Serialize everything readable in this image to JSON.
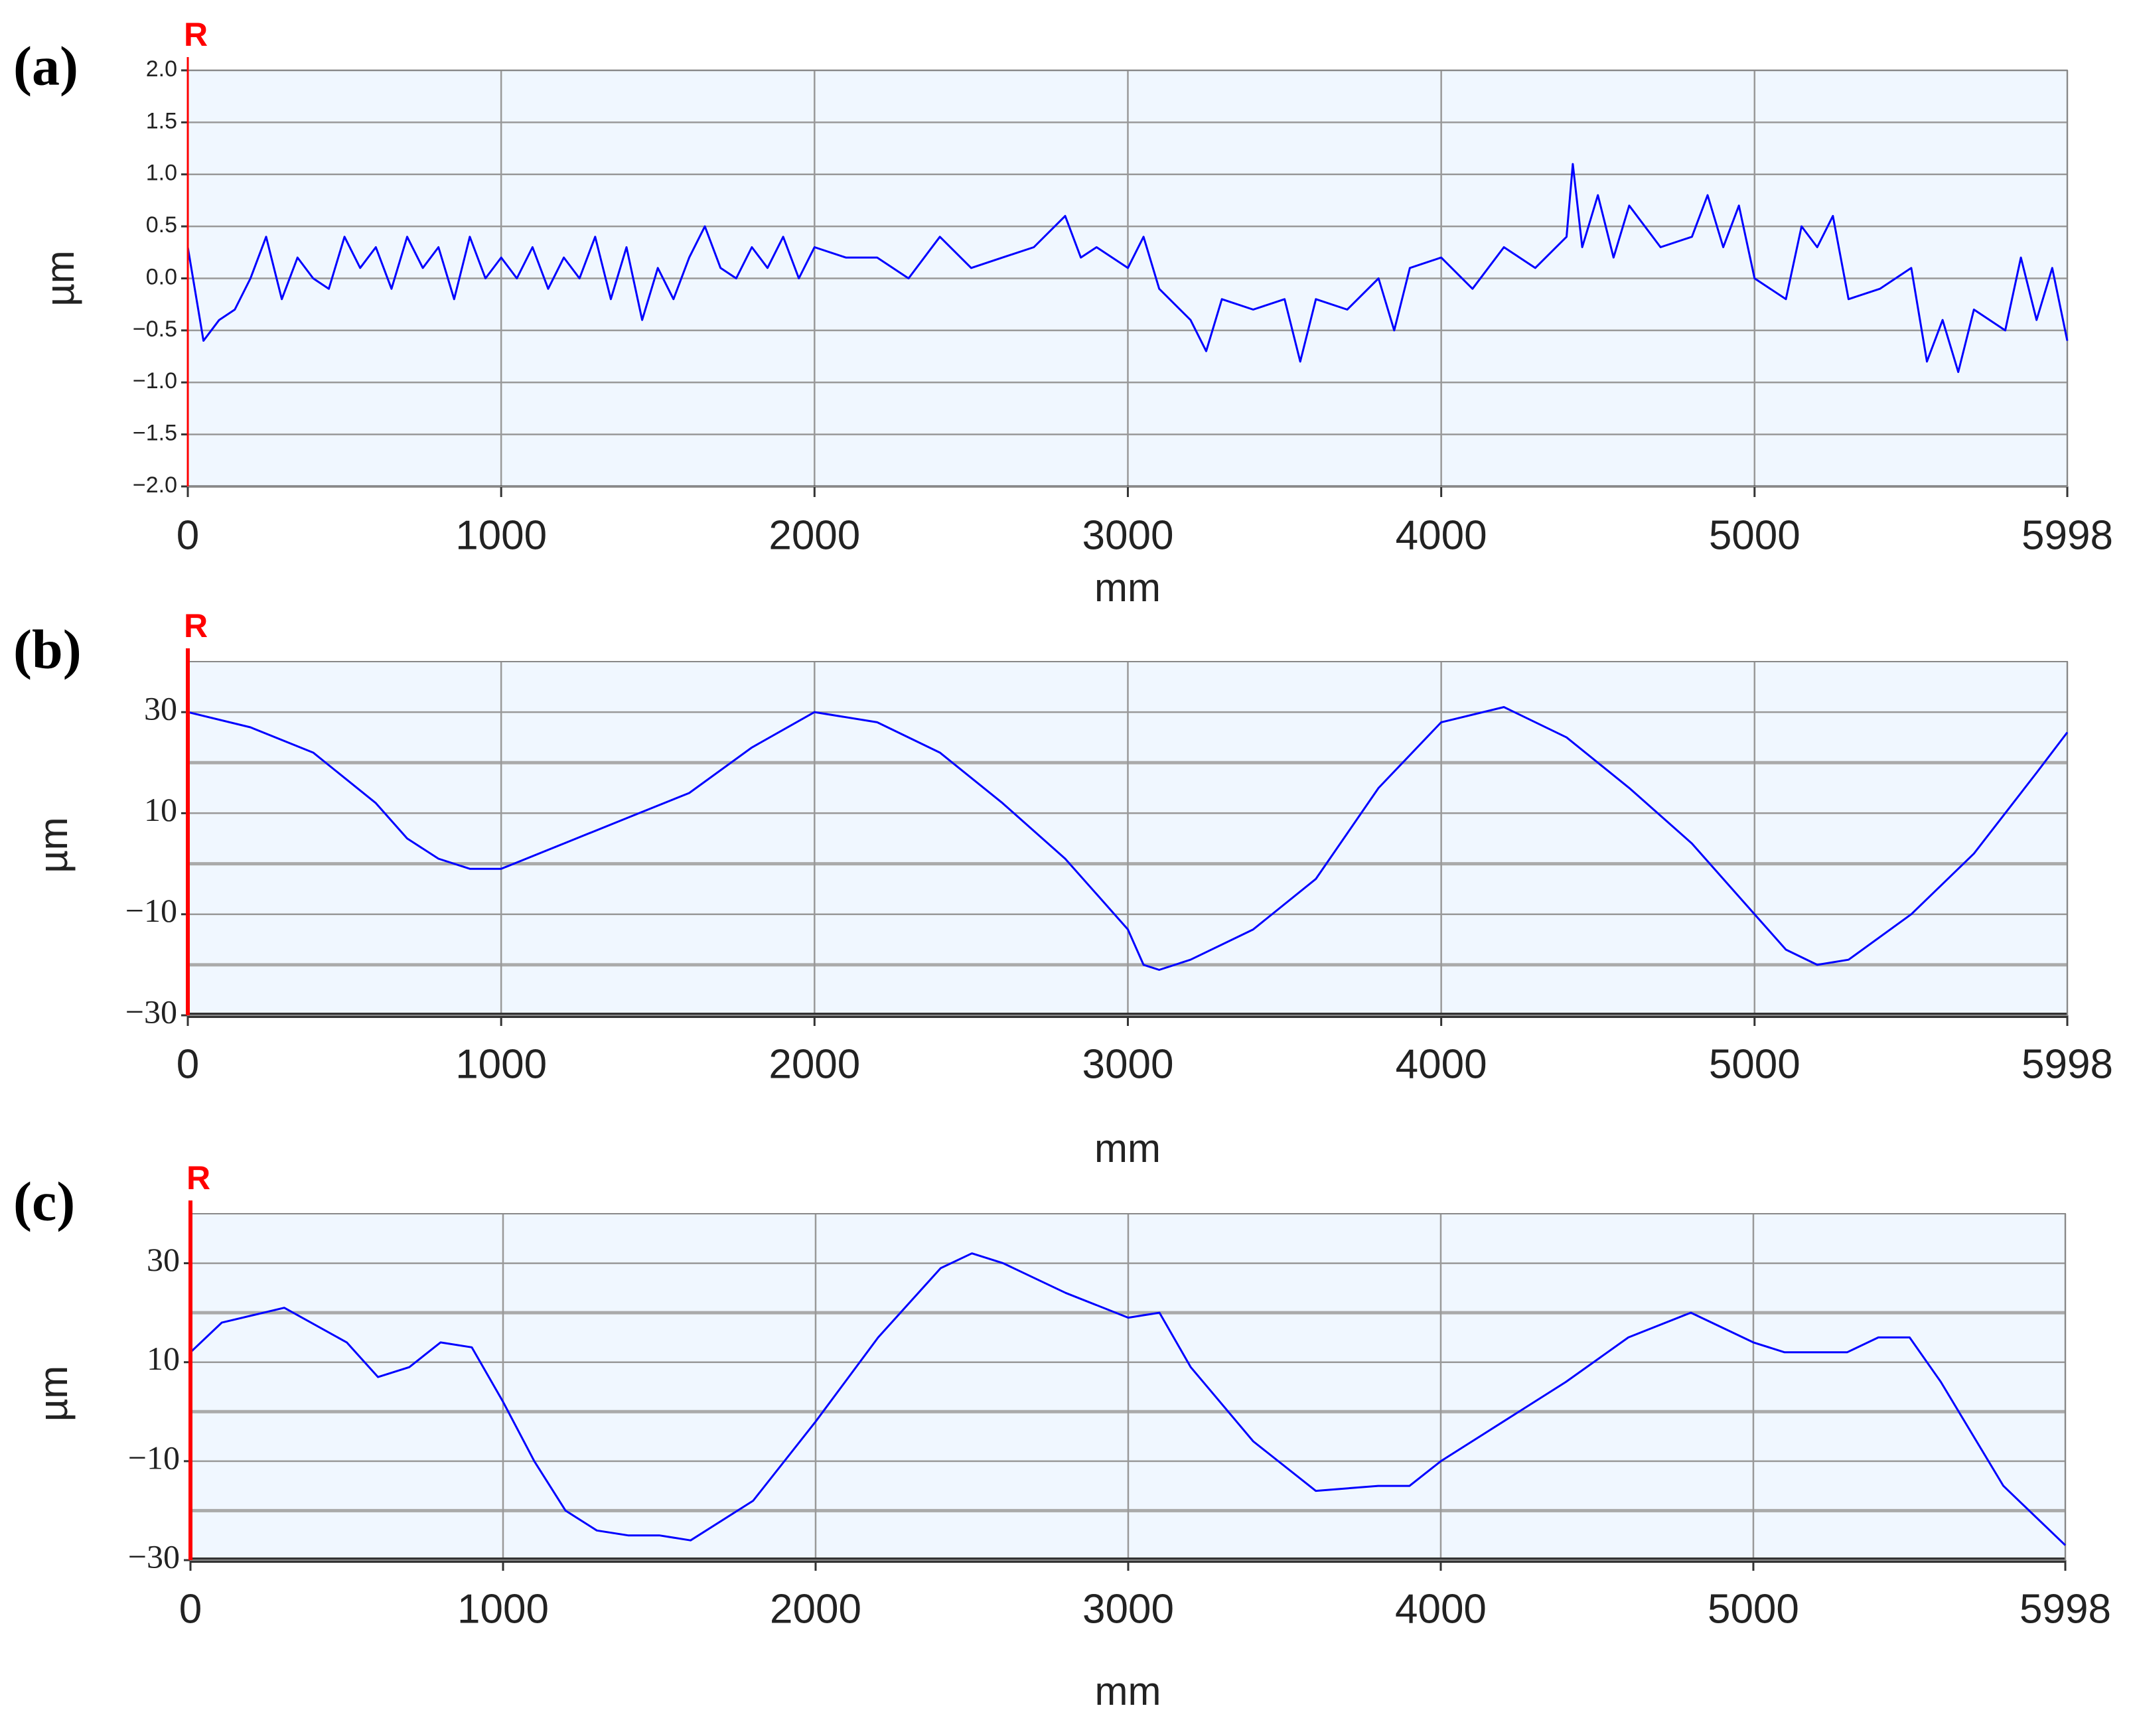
{
  "chart_data": [
    {
      "type": "line",
      "panel_label": "(a)",
      "marker_label": "R",
      "ylabel": "µm",
      "xlabel": "mm",
      "color": "#0000ff",
      "marker_color": "#ff0000",
      "background": "#f0f7ff",
      "grid": true,
      "xlim": [
        0,
        5998
      ],
      "xticks": [
        0,
        1000,
        2000,
        3000,
        4000,
        5000,
        5998
      ],
      "ylim": [
        -2,
        2
      ],
      "yticks": [
        {
          "value": 2,
          "label": "2.0"
        },
        {
          "value": 1.5,
          "label": "1.5"
        },
        {
          "value": 1,
          "label": "1.0"
        },
        {
          "value": 0.5,
          "label": "0.5"
        },
        {
          "value": 0,
          "label": "0.0"
        },
        {
          "value": -0.5,
          "label": "−0.5"
        },
        {
          "value": -1,
          "label": "−1.0"
        },
        {
          "value": -1.5,
          "label": "−1.5"
        },
        {
          "value": -2,
          "label": "−2.0"
        }
      ],
      "x": [
        0,
        50,
        100,
        150,
        200,
        250,
        300,
        350,
        400,
        450,
        500,
        550,
        600,
        650,
        700,
        750,
        800,
        850,
        900,
        950,
        1000,
        1050,
        1100,
        1150,
        1200,
        1250,
        1300,
        1350,
        1400,
        1450,
        1500,
        1550,
        1600,
        1650,
        1700,
        1750,
        1800,
        1850,
        1900,
        1950,
        2000,
        2100,
        2200,
        2300,
        2400,
        2500,
        2600,
        2700,
        2800,
        2850,
        2900,
        3000,
        3050,
        3100,
        3200,
        3250,
        3300,
        3400,
        3500,
        3550,
        3600,
        3700,
        3800,
        3850,
        3900,
        4000,
        4100,
        4200,
        4300,
        4400,
        4420,
        4450,
        4500,
        4550,
        4600,
        4700,
        4800,
        4850,
        4900,
        4950,
        5000,
        5100,
        5150,
        5200,
        5250,
        5300,
        5400,
        5500,
        5550,
        5600,
        5650,
        5700,
        5800,
        5850,
        5900,
        5950,
        5998
      ],
      "values": [
        0.3,
        -0.6,
        -0.4,
        -0.3,
        0.0,
        0.4,
        -0.2,
        0.2,
        0.0,
        -0.1,
        0.4,
        0.1,
        0.3,
        -0.1,
        0.4,
        0.1,
        0.3,
        -0.2,
        0.4,
        0.0,
        0.2,
        0.0,
        0.3,
        -0.1,
        0.2,
        0.0,
        0.4,
        -0.2,
        0.3,
        -0.4,
        0.1,
        -0.2,
        0.2,
        0.5,
        0.1,
        0.0,
        0.3,
        0.1,
        0.4,
        0.0,
        0.3,
        0.2,
        0.2,
        0.0,
        0.4,
        0.1,
        0.2,
        0.3,
        0.6,
        0.2,
        0.3,
        0.1,
        0.4,
        -0.1,
        -0.4,
        -0.7,
        -0.2,
        -0.3,
        -0.2,
        -0.8,
        -0.2,
        -0.3,
        0.0,
        -0.5,
        0.1,
        0.2,
        -0.1,
        0.3,
        0.1,
        0.4,
        1.1,
        0.3,
        0.8,
        0.2,
        0.7,
        0.3,
        0.4,
        0.8,
        0.3,
        0.7,
        0.0,
        -0.2,
        0.5,
        0.3,
        0.6,
        -0.2,
        -0.1,
        0.1,
        -0.8,
        -0.4,
        -0.9,
        -0.3,
        -0.5,
        0.2,
        -0.4,
        0.1,
        -0.6
      ]
    },
    {
      "type": "line",
      "panel_label": "(b)",
      "marker_label": "R",
      "ylabel": "µm",
      "xlabel": "mm",
      "color": "#0000ff",
      "marker_color": "#ff0000",
      "background": "#f0f7ff",
      "grid": true,
      "xlim": [
        0,
        5998
      ],
      "xticks": [
        0,
        1000,
        2000,
        3000,
        4000,
        5000,
        5998
      ],
      "ylim": [
        -30,
        40
      ],
      "yticks": [
        30,
        10,
        {
          "value": -10,
          "label": "−10"
        },
        {
          "value": -30,
          "label": "−30"
        }
      ],
      "minor_grid": [
        20,
        0,
        -20
      ],
      "x": [
        0,
        200,
        400,
        600,
        700,
        800,
        900,
        1000,
        1200,
        1400,
        1600,
        1800,
        2000,
        2200,
        2400,
        2600,
        2800,
        2900,
        3000,
        3050,
        3100,
        3200,
        3400,
        3600,
        3800,
        4000,
        4200,
        4400,
        4600,
        4800,
        5000,
        5100,
        5200,
        5300,
        5500,
        5700,
        5900,
        5998
      ],
      "values": [
        30,
        27,
        22,
        12,
        5,
        1,
        -1,
        -1,
        4,
        9,
        14,
        23,
        30,
        28,
        22,
        12,
        1,
        -6,
        -13,
        -20,
        -21,
        -19,
        -13,
        -3,
        15,
        28,
        31,
        25,
        15,
        4,
        -10,
        -17,
        -20,
        -19,
        -10,
        2,
        18,
        26
      ]
    },
    {
      "type": "line",
      "panel_label": "(c)",
      "marker_label": "R",
      "ylabel": "µm",
      "xlabel": "mm",
      "color": "#0000ff",
      "marker_color": "#ff0000",
      "background": "#f0f7ff",
      "grid": true,
      "xlim": [
        0,
        5998
      ],
      "xticks": [
        0,
        1000,
        2000,
        3000,
        4000,
        5000,
        5998
      ],
      "ylim": [
        -30,
        40
      ],
      "yticks": [
        30,
        10,
        {
          "value": -10,
          "label": "−10"
        },
        {
          "value": -30,
          "label": "−30"
        }
      ],
      "minor_grid": [
        20,
        0,
        -20
      ],
      "x": [
        0,
        100,
        300,
        500,
        600,
        700,
        800,
        900,
        1000,
        1100,
        1200,
        1300,
        1400,
        1500,
        1600,
        1800,
        2000,
        2200,
        2400,
        2500,
        2600,
        2800,
        3000,
        3100,
        3200,
        3400,
        3600,
        3800,
        3900,
        4000,
        4200,
        4400,
        4600,
        4800,
        5000,
        5100,
        5300,
        5400,
        5500,
        5600,
        5800,
        5998
      ],
      "values": [
        12,
        18,
        21,
        14,
        7,
        9,
        14,
        13,
        2,
        -10,
        -20,
        -24,
        -25,
        -25,
        -26,
        -18,
        -2,
        15,
        29,
        32,
        30,
        24,
        19,
        20,
        9,
        -6,
        -16,
        -15,
        -15,
        -10,
        -2,
        6,
        15,
        20,
        14,
        12,
        12,
        15,
        15,
        6,
        -15,
        -27
      ]
    }
  ]
}
